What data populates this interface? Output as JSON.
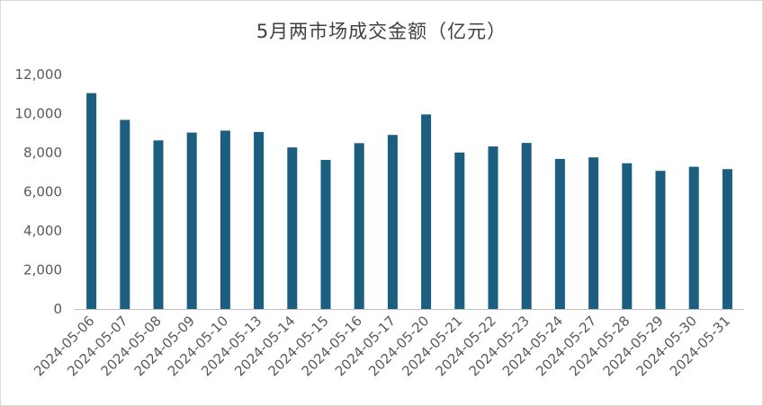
{
  "chart_data": {
    "type": "bar",
    "title": "5月两市场成交金额（亿元）",
    "categories": [
      "2024-05-06",
      "2024-05-07",
      "2024-05-08",
      "2024-05-09",
      "2024-05-10",
      "2024-05-13",
      "2024-05-14",
      "2024-05-15",
      "2024-05-16",
      "2024-05-17",
      "2024-05-20",
      "2024-05-21",
      "2024-05-22",
      "2024-05-23",
      "2024-05-24",
      "2024-05-27",
      "2024-05-28",
      "2024-05-29",
      "2024-05-30",
      "2024-05-31"
    ],
    "values": [
      11050,
      9680,
      8630,
      9030,
      9130,
      9060,
      8270,
      7630,
      8490,
      8910,
      9960,
      8010,
      8320,
      8500,
      7680,
      7760,
      7460,
      7070,
      7280,
      7160
    ],
    "ylim": [
      0,
      12000
    ],
    "yticks": [
      "0",
      "2,000",
      "4,000",
      "6,000",
      "8,000",
      "10,000",
      "12,000"
    ],
    "ytick_values": [
      0,
      2000,
      4000,
      6000,
      8000,
      10000,
      12000
    ],
    "grid": false,
    "bar_color": "#1b5e80"
  }
}
